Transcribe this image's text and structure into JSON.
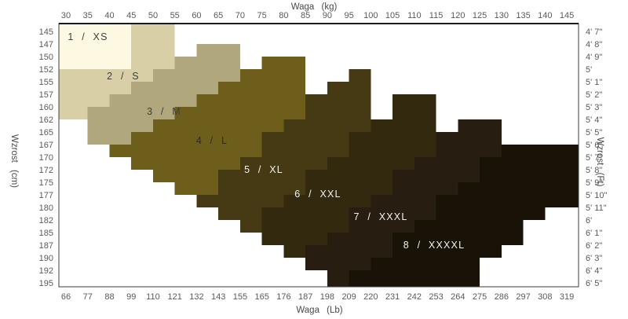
{
  "figure": {
    "kind": "tights-size-chart",
    "background": "#ffffff",
    "border_color": "#3d3d3d",
    "top_axis_line_color": "#1a1a1a"
  },
  "axes": {
    "top": {
      "label": "Waga (kg)",
      "ticks": [
        "30",
        "35",
        "40",
        "45",
        "50",
        "55",
        "60",
        "65",
        "70",
        "75",
        "80",
        "85",
        "90",
        "95",
        "100",
        "105",
        "110",
        "115",
        "120",
        "125",
        "130",
        "135",
        "140",
        "145"
      ]
    },
    "bottom": {
      "label": "Waga (Lb)",
      "ticks": [
        "66",
        "77",
        "88",
        "99",
        "110",
        "121",
        "132",
        "143",
        "155",
        "165",
        "176",
        "187",
        "198",
        "209",
        "220",
        "231",
        "242",
        "253",
        "264",
        "275",
        "286",
        "297",
        "308",
        "319"
      ]
    },
    "left": {
      "label": "Wzrost (cm)",
      "ticks": [
        "145",
        "147",
        "150",
        "152",
        "155",
        "157",
        "160",
        "162",
        "165",
        "167",
        "170",
        "172",
        "175",
        "177",
        "180",
        "182",
        "185",
        "187",
        "190",
        "192",
        "195"
      ]
    },
    "right": {
      "label": "Wzrost (Ft)",
      "ticks": [
        "4' 7\"",
        "4' 8\"",
        "4' 9\"",
        "5'",
        "5' 1\"",
        "5' 2\"",
        "5' 3\"",
        "5' 4\"",
        "5' 5\"",
        "5' 6\"",
        "5' 7\"",
        "5' 8\"",
        "5' 9\"",
        "5' 10\"",
        "5' 11\"",
        "6'",
        "6' 1\"",
        "6' 2\"",
        "6' 3\"",
        "6' 4\"",
        "6' 5\""
      ]
    }
  },
  "chart_data": {
    "type": "heatmap",
    "title": "",
    "x_units": [
      "kg",
      "Lb"
    ],
    "y_units": [
      "cm",
      "Ft"
    ],
    "x_ticks_kg": [
      30,
      35,
      40,
      45,
      50,
      55,
      60,
      65,
      70,
      75,
      80,
      85,
      90,
      95,
      100,
      105,
      110,
      115,
      120,
      125,
      130,
      135,
      140,
      145
    ],
    "x_ticks_lb": [
      66,
      77,
      88,
      99,
      110,
      121,
      132,
      143,
      155,
      165,
      176,
      187,
      198,
      209,
      220,
      231,
      242,
      253,
      264,
      275,
      286,
      297,
      308,
      319
    ],
    "y_ticks_cm": [
      145,
      147,
      150,
      152,
      155,
      157,
      160,
      162,
      165,
      167,
      170,
      172,
      175,
      177,
      180,
      182,
      185,
      187,
      190,
      192,
      195
    ],
    "grid": "off",
    "legend": "none",
    "note": "cells = [weight-column index (5kg bins from 30kg), first height-row, last height-row] (2.5cm rows from 145cm); stepped diagonal size bands",
    "sizes": [
      {
        "label": "1 / XS",
        "color": "#fcf8e1",
        "label_color": "#3f3f3f",
        "label_pos": [
          112,
          47
        ],
        "cells": [
          [
            0,
            0,
            2
          ],
          [
            1,
            0,
            2
          ],
          [
            2,
            0,
            2
          ]
        ]
      },
      {
        "label": "2 / S",
        "color": "#d8cfa7",
        "label_color": "#3f3f3f",
        "label_pos": [
          157,
          97
        ],
        "cells": [
          [
            0,
            3,
            6
          ],
          [
            1,
            3,
            5
          ],
          [
            2,
            3,
            4
          ],
          [
            3,
            0,
            3
          ],
          [
            4,
            0,
            2
          ]
        ]
      },
      {
        "label": "3 / M",
        "color": "#b0a77d",
        "label_color": "#3f3f3f",
        "label_pos": [
          209,
          142
        ],
        "cells": [
          [
            1,
            6,
            8
          ],
          [
            2,
            5,
            8
          ],
          [
            3,
            4,
            7
          ],
          [
            4,
            3,
            6
          ],
          [
            5,
            2,
            5
          ],
          [
            6,
            1,
            4
          ],
          [
            7,
            1,
            3
          ]
        ]
      },
      {
        "label": "4 / L",
        "color": "#6e5e1b",
        "label_color": "#2e2a18",
        "label_pos": [
          270,
          179
        ],
        "cells": [
          [
            2,
            9,
            9
          ],
          [
            3,
            8,
            10
          ],
          [
            4,
            7,
            11
          ],
          [
            5,
            6,
            12
          ],
          [
            6,
            5,
            12
          ],
          [
            7,
            4,
            10
          ],
          [
            8,
            3,
            9
          ],
          [
            9,
            2,
            7
          ],
          [
            10,
            2,
            6
          ]
        ]
      },
      {
        "label": "5 / XL",
        "color": "#453a13",
        "label_color": "#f2f2f2",
        "label_pos": [
          336,
          216
        ],
        "cells": [
          [
            6,
            13,
            13
          ],
          [
            7,
            11,
            14
          ],
          [
            8,
            10,
            15
          ],
          [
            9,
            8,
            13
          ],
          [
            10,
            7,
            12
          ],
          [
            11,
            5,
            10
          ],
          [
            12,
            4,
            9
          ],
          [
            13,
            3,
            7
          ]
        ]
      },
      {
        "label": "6 / XXL",
        "color": "#33290f",
        "label_color": "#f2f2f2",
        "label_pos": [
          405,
          247
        ],
        "cells": [
          [
            9,
            14,
            16
          ],
          [
            10,
            13,
            17
          ],
          [
            11,
            11,
            16
          ],
          [
            12,
            10,
            15
          ],
          [
            13,
            8,
            13
          ],
          [
            14,
            7,
            12
          ],
          [
            15,
            5,
            10
          ],
          [
            16,
            5,
            9
          ]
        ]
      },
      {
        "label": "7 / XXXL",
        "color": "#271d11",
        "label_color": "#f2f2f2",
        "label_pos": [
          485,
          276
        ],
        "cells": [
          [
            11,
            17,
            18
          ],
          [
            12,
            16,
            19
          ],
          [
            13,
            14,
            18
          ],
          [
            14,
            13,
            17
          ],
          [
            15,
            11,
            15
          ],
          [
            16,
            10,
            14
          ],
          [
            17,
            8,
            12
          ],
          [
            18,
            7,
            11
          ],
          [
            19,
            7,
            9
          ]
        ]
      },
      {
        "label": "8 / XXXXL",
        "color": "#191307",
        "label_color": "#f2f2f2",
        "label_pos": [
          553,
          312
        ],
        "cells": [
          [
            13,
            19,
            19
          ],
          [
            14,
            18,
            19
          ],
          [
            15,
            16,
            19
          ],
          [
            16,
            15,
            19
          ],
          [
            17,
            13,
            19
          ],
          [
            18,
            12,
            19
          ],
          [
            19,
            10,
            17
          ],
          [
            20,
            9,
            16
          ],
          [
            21,
            9,
            14
          ],
          [
            22,
            9,
            13
          ]
        ]
      }
    ]
  }
}
